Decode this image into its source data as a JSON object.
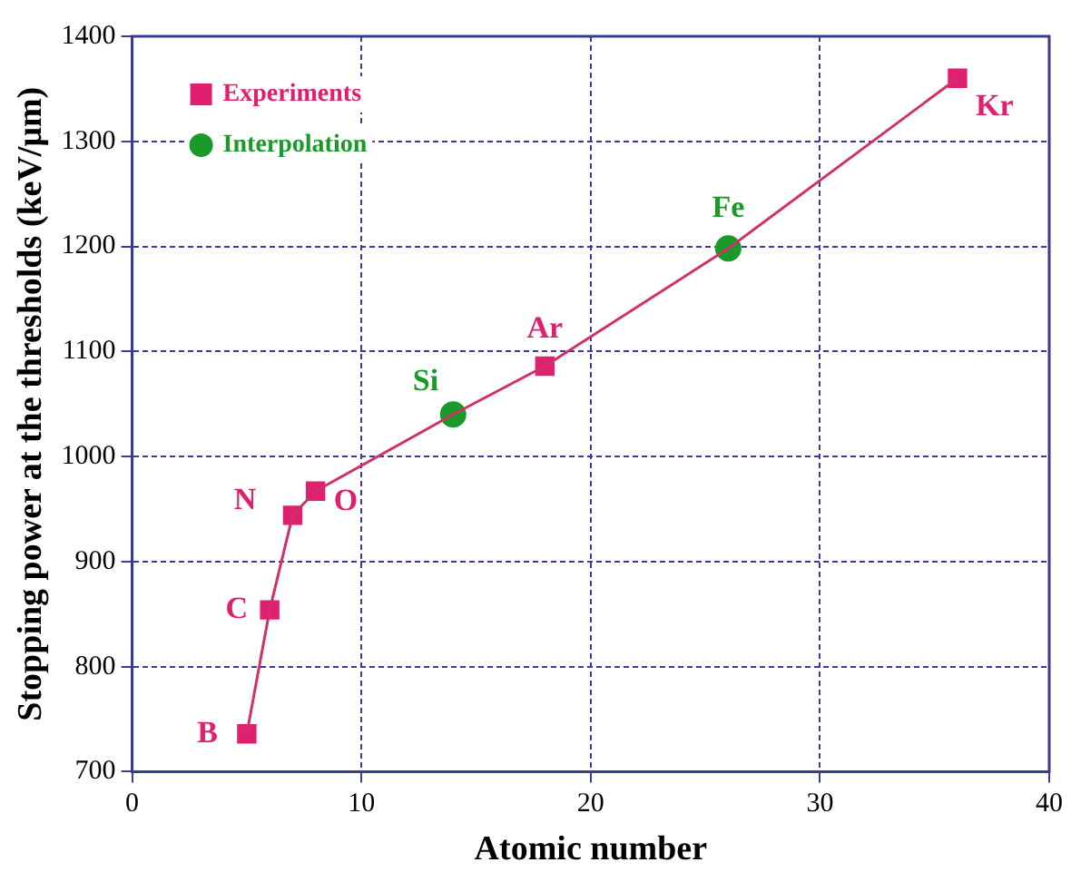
{
  "chart_data": {
    "type": "scatter",
    "xlabel": "Atomic number",
    "ylabel": "Stopping power at the thresholds (keV/μm)",
    "xlim": [
      0,
      40
    ],
    "xticks": [
      0,
      10,
      20,
      30,
      40
    ],
    "ylim": [
      700,
      1400
    ],
    "yticks": [
      700,
      800,
      900,
      1000,
      1100,
      1200,
      1300,
      1400
    ],
    "grid": true,
    "legend": "top left",
    "series": [
      {
        "type": "line",
        "x": [
          5,
          6,
          7,
          8,
          14,
          18,
          26,
          36
        ],
        "values": [
          736,
          854,
          944,
          967,
          1040,
          1086,
          1198,
          1360
        ],
        "color": "#d0306a",
        "marker": "none",
        "line_style": "solid"
      },
      {
        "name": "Experiments",
        "x": [
          5,
          6,
          7,
          8,
          18,
          36
        ],
        "values": [
          736,
          854,
          944,
          967,
          1086,
          1360
        ],
        "color": "#e0206e",
        "marker": "square"
      },
      {
        "name": "Interpolation",
        "x": [
          14,
          26
        ],
        "values": [
          1040,
          1198
        ],
        "color": "#1a9a2a",
        "marker": "circle"
      }
    ],
    "annotations": [
      {
        "text": "B",
        "x": 5,
        "y": 736
      },
      {
        "text": "C",
        "x": 6,
        "y": 854
      },
      {
        "text": "N",
        "x": 7,
        "y": 944
      },
      {
        "text": "O",
        "x": 8,
        "y": 967
      },
      {
        "text": "Si",
        "x": 14,
        "y": 1040
      },
      {
        "text": "Ar",
        "x": 18,
        "y": 1086
      },
      {
        "text": "Fe",
        "x": 26,
        "y": 1198
      },
      {
        "text": "Kr",
        "x": 36,
        "y": 1360
      }
    ]
  }
}
